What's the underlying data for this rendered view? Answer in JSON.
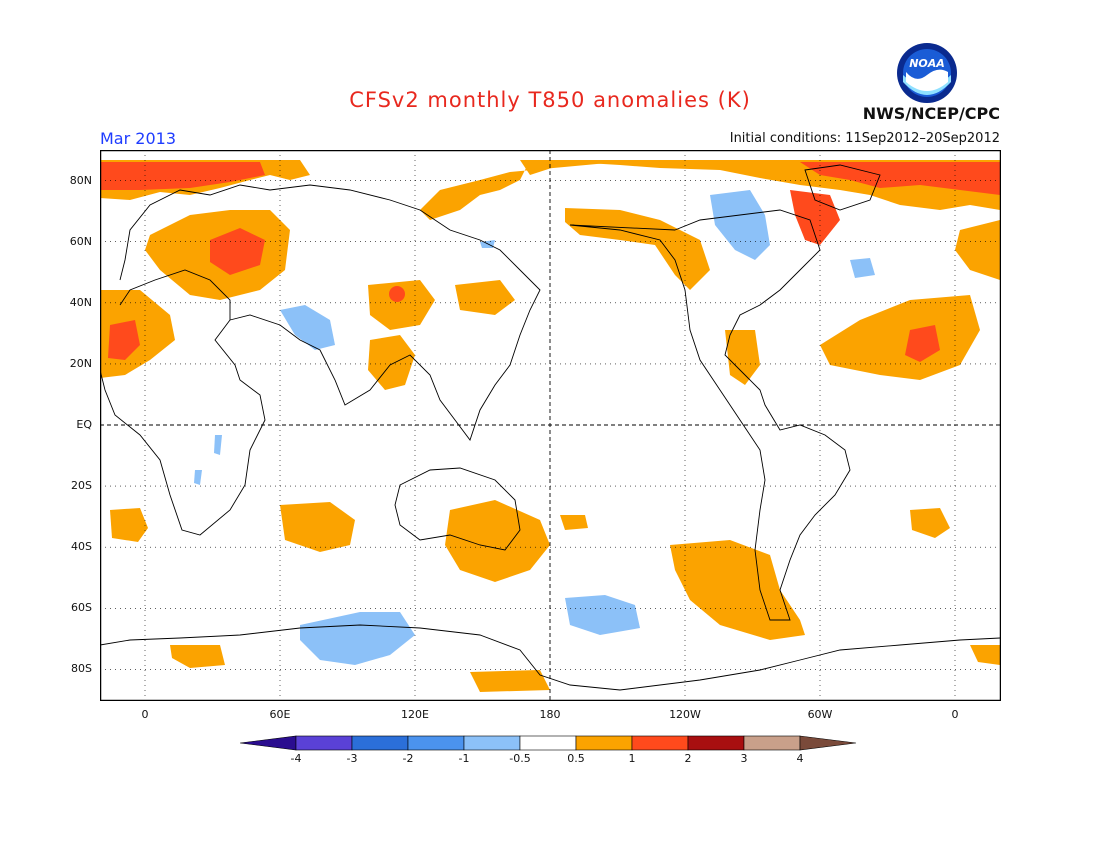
{
  "header": {
    "title": "CFSv2 monthly T850 anomalies (K)",
    "month": "Mar 2013",
    "initial_conditions": "Initial conditions: 11Sep2012–20Sep2012",
    "agency": "NWS/NCEP/CPC",
    "logo_text": "NOAA"
  },
  "map": {
    "projection": "equirectangular",
    "lon_range": [
      -20,
      380
    ],
    "lat_range": [
      -90,
      90
    ],
    "lat_labels": [
      "80N",
      "60N",
      "40N",
      "20N",
      "EQ",
      "20S",
      "40S",
      "60S",
      "80S"
    ],
    "lon_labels": [
      "0",
      "60E",
      "120E",
      "180",
      "120W",
      "60W",
      "0"
    ],
    "grid": "dotted",
    "dashed_lines": [
      "equator",
      "dateline"
    ]
  },
  "colorbar": {
    "labels": [
      "-4",
      "-3",
      "-2",
      "-1",
      "-0.5",
      "0.5",
      "1",
      "2",
      "3",
      "4"
    ],
    "colors": [
      "#2a0d8f",
      "#5a41d6",
      "#2b6fd9",
      "#4b93ee",
      "#8cc1f8",
      "#ffffff",
      "#fba300",
      "#ff4a1c",
      "#a80f10",
      "#c9a08a",
      "#7a4a3a"
    ]
  }
}
